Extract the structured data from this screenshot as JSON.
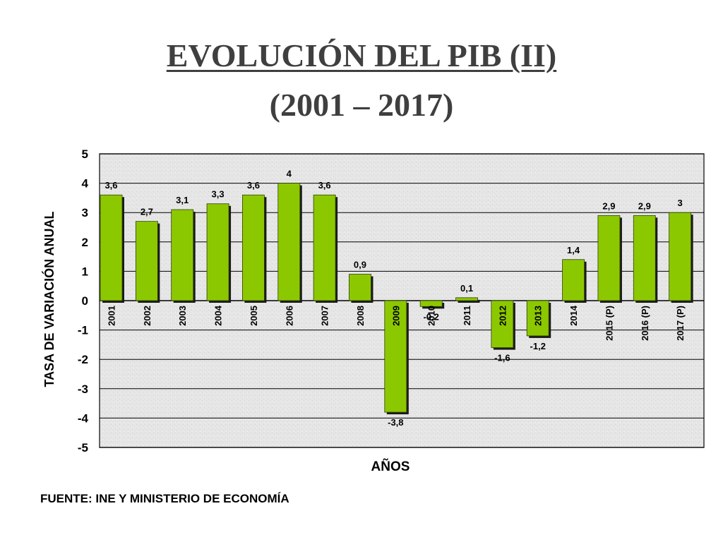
{
  "slide": {
    "title": "EVOLUCIÓN DEL PIB (II)",
    "subtitle": "(2001 – 2017)",
    "source": "FUENTE: INE Y MINISTERIO DE ECONOMÍA"
  },
  "chart_data": {
    "type": "bar",
    "title": "",
    "xlabel": "AÑOS",
    "ylabel": "TASA DE VARIACIÓN ANUAL",
    "ylim": [
      -5,
      5
    ],
    "yticks": [
      5,
      4,
      3,
      2,
      1,
      0,
      -1,
      -2,
      -3,
      -4,
      -5
    ],
    "grid": true,
    "legend": "none",
    "categories": [
      "2001",
      "2002",
      "2003",
      "2004",
      "2005",
      "2006",
      "2007",
      "2008",
      "2009",
      "2010",
      "2011",
      "2012",
      "2013",
      "2014",
      "2015 (P)",
      "2016 (P)",
      "2017 (P)"
    ],
    "values": [
      3.6,
      2.7,
      3.1,
      3.3,
      3.6,
      4,
      3.6,
      0.9,
      -3.8,
      -0.2,
      0.1,
      -1.6,
      -1.2,
      1.4,
      2.9,
      2.9,
      3
    ],
    "data_labels": [
      "3,6",
      "2,7",
      "3,1",
      "3,3",
      "3,6",
      "4",
      "3,6",
      "0,9",
      "-3,8",
      "-0,2",
      "0,1",
      "-1,6",
      "-1,2",
      "1,4",
      "2,9",
      "2,9",
      "3"
    ],
    "colors": {
      "bar": "#8cc800",
      "bar_shadow": "#1a1a1a",
      "plot_bg": "#e6e6e6",
      "grid": "#000000"
    }
  }
}
